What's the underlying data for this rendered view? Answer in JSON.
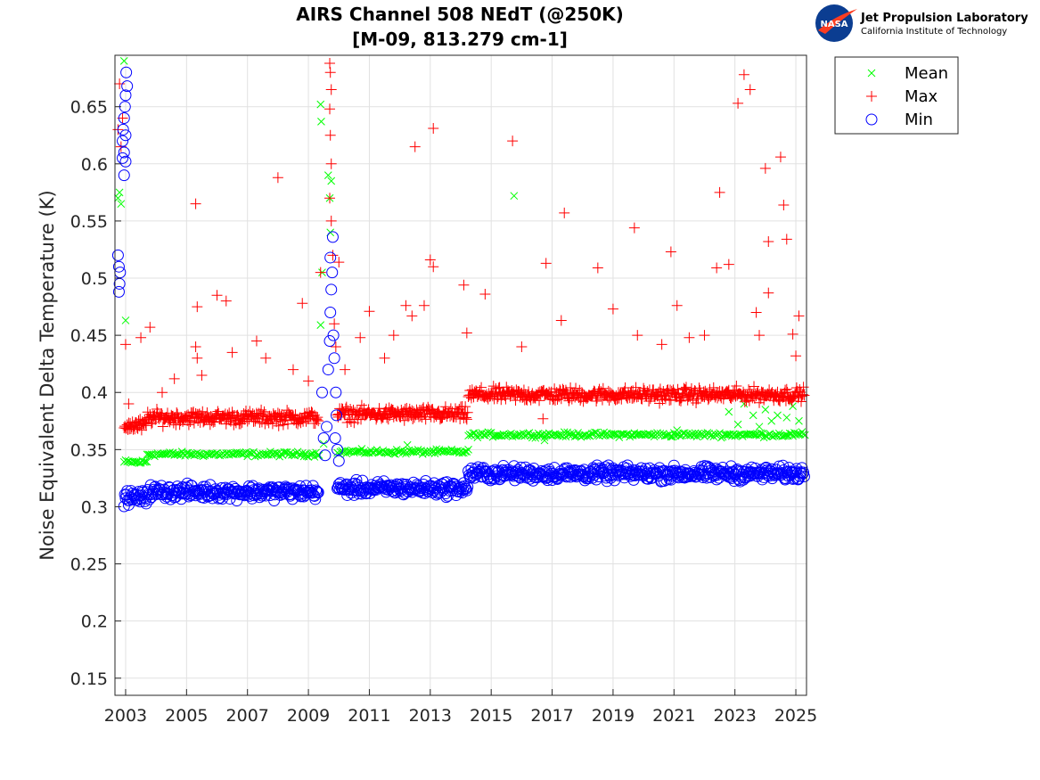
{
  "chart_data": {
    "type": "scatter",
    "title_line1": "AIRS Channel 508 NEdT (@250K)",
    "title_line2": "[M-09, 813.279 cm-1]",
    "xlabel": "",
    "ylabel": "Noise Equivalent Delta Temperature (K)",
    "xlim": [
      2002.65,
      2025.35
    ],
    "ylim": [
      0.135,
      0.695
    ],
    "grid": true,
    "legend_position": "outside-top-right",
    "x_ticks": [
      2003,
      2005,
      2007,
      2009,
      2011,
      2013,
      2015,
      2017,
      2019,
      2021,
      2023,
      2025
    ],
    "x_tick_labels": [
      "2003",
      "2005",
      "2007",
      "2009",
      "2011",
      "2013",
      "2015",
      "2017",
      "2019",
      "2021",
      "2023",
      "2025"
    ],
    "y_ticks": [
      0.15,
      0.2,
      0.25,
      0.3,
      0.35,
      0.4,
      0.45,
      0.5,
      0.55,
      0.6,
      0.65
    ],
    "y_tick_labels": [
      "0.15",
      "0.2",
      "0.25",
      "0.3",
      "0.35",
      "0.4",
      "0.45",
      "0.5",
      "0.55",
      "0.6",
      "0.65"
    ],
    "series": [
      {
        "name": "Mean",
        "marker": "x",
        "color": "#00ff00",
        "segments": [
          {
            "x_start": 2002.95,
            "x_end": 2003.7,
            "level": 0.339
          },
          {
            "x_start": 2003.7,
            "x_end": 2009.35,
            "level": 0.346
          },
          {
            "x_start": 2009.95,
            "x_end": 2014.25,
            "level": 0.348
          },
          {
            "x_start": 2014.25,
            "x_end": 2025.3,
            "level": 0.363
          }
        ],
        "outliers": [
          [
            2002.75,
            0.57
          ],
          [
            2002.8,
            0.575
          ],
          [
            2002.85,
            0.565
          ],
          [
            2002.95,
            0.69
          ],
          [
            2003.0,
            0.463
          ],
          [
            2009.4,
            0.652
          ],
          [
            2009.42,
            0.637
          ],
          [
            2009.45,
            0.505
          ],
          [
            2009.4,
            0.459
          ],
          [
            2009.5,
            0.355
          ],
          [
            2009.65,
            0.59
          ],
          [
            2009.7,
            0.57
          ],
          [
            2009.72,
            0.54
          ],
          [
            2009.75,
            0.585
          ],
          [
            2015.75,
            0.572
          ],
          [
            2012.25,
            0.354
          ],
          [
            2021.1,
            0.367
          ],
          [
            2016.75,
            0.358
          ],
          [
            2022.8,
            0.383
          ],
          [
            2023.1,
            0.372
          ],
          [
            2023.3,
            0.39
          ],
          [
            2023.6,
            0.38
          ],
          [
            2023.8,
            0.37
          ],
          [
            2024.0,
            0.385
          ],
          [
            2024.2,
            0.375
          ],
          [
            2024.4,
            0.38
          ],
          [
            2024.7,
            0.378
          ],
          [
            2024.9,
            0.388
          ],
          [
            2025.1,
            0.375
          ]
        ]
      },
      {
        "name": "Max",
        "marker": "+",
        "color": "#ff0000",
        "segments": [
          {
            "x_start": 2002.95,
            "x_end": 2003.7,
            "level": 0.371
          },
          {
            "x_start": 2003.7,
            "x_end": 2009.35,
            "level": 0.378
          },
          {
            "x_start": 2009.95,
            "x_end": 2014.25,
            "level": 0.381
          },
          {
            "x_start": 2014.25,
            "x_end": 2025.3,
            "level": 0.398
          }
        ],
        "outliers": [
          [
            2002.75,
            0.63
          ],
          [
            2002.8,
            0.67
          ],
          [
            2002.85,
            0.615
          ],
          [
            2002.9,
            0.64
          ],
          [
            2003.0,
            0.442
          ],
          [
            2003.1,
            0.39
          ],
          [
            2003.5,
            0.448
          ],
          [
            2003.8,
            0.457
          ],
          [
            2004.2,
            0.4
          ],
          [
            2004.6,
            0.412
          ],
          [
            2005.3,
            0.565
          ],
          [
            2005.35,
            0.475
          ],
          [
            2005.3,
            0.44
          ],
          [
            2005.35,
            0.43
          ],
          [
            2005.5,
            0.415
          ],
          [
            2006.0,
            0.485
          ],
          [
            2006.3,
            0.48
          ],
          [
            2006.5,
            0.435
          ],
          [
            2007.3,
            0.445
          ],
          [
            2007.6,
            0.43
          ],
          [
            2008.0,
            0.588
          ],
          [
            2008.5,
            0.42
          ],
          [
            2008.8,
            0.478
          ],
          [
            2009.0,
            0.41
          ],
          [
            2009.4,
            0.505
          ],
          [
            2009.7,
            0.688
          ],
          [
            2009.72,
            0.68
          ],
          [
            2009.75,
            0.665
          ],
          [
            2009.7,
            0.648
          ],
          [
            2009.72,
            0.625
          ],
          [
            2009.75,
            0.6
          ],
          [
            2009.7,
            0.57
          ],
          [
            2009.75,
            0.55
          ],
          [
            2009.8,
            0.52
          ],
          [
            2009.85,
            0.46
          ],
          [
            2009.9,
            0.44
          ],
          [
            2010.0,
            0.514
          ],
          [
            2010.2,
            0.42
          ],
          [
            2010.7,
            0.448
          ],
          [
            2011.0,
            0.471
          ],
          [
            2011.5,
            0.43
          ],
          [
            2011.8,
            0.45
          ],
          [
            2012.2,
            0.476
          ],
          [
            2012.4,
            0.467
          ],
          [
            2012.5,
            0.615
          ],
          [
            2012.8,
            0.476
          ],
          [
            2013.0,
            0.516
          ],
          [
            2013.1,
            0.51
          ],
          [
            2013.1,
            0.631
          ],
          [
            2014.1,
            0.494
          ],
          [
            2014.2,
            0.452
          ],
          [
            2014.8,
            0.486
          ],
          [
            2015.7,
            0.62
          ],
          [
            2016.0,
            0.44
          ],
          [
            2016.8,
            0.513
          ],
          [
            2016.7,
            0.377
          ],
          [
            2017.3,
            0.463
          ],
          [
            2017.4,
            0.557
          ],
          [
            2018.5,
            0.509
          ],
          [
            2019.0,
            0.473
          ],
          [
            2019.7,
            0.544
          ],
          [
            2019.8,
            0.45
          ],
          [
            2020.6,
            0.442
          ],
          [
            2020.9,
            0.523
          ],
          [
            2021.1,
            0.476
          ],
          [
            2021.5,
            0.448
          ],
          [
            2022.0,
            0.45
          ],
          [
            2022.4,
            0.509
          ],
          [
            2022.5,
            0.575
          ],
          [
            2022.8,
            0.512
          ],
          [
            2023.1,
            0.653
          ],
          [
            2023.3,
            0.678
          ],
          [
            2023.5,
            0.665
          ],
          [
            2023.7,
            0.47
          ],
          [
            2023.8,
            0.45
          ],
          [
            2024.0,
            0.596
          ],
          [
            2024.1,
            0.532
          ],
          [
            2024.1,
            0.487
          ],
          [
            2024.5,
            0.606
          ],
          [
            2024.6,
            0.564
          ],
          [
            2024.7,
            0.534
          ],
          [
            2024.9,
            0.451
          ],
          [
            2025.1,
            0.467
          ],
          [
            2025.0,
            0.432
          ]
        ]
      },
      {
        "name": "Min",
        "marker": "o",
        "color": "#0000ff",
        "segments": [
          {
            "x_start": 2002.95,
            "x_end": 2003.7,
            "level": 0.308
          },
          {
            "x_start": 2003.7,
            "x_end": 2009.35,
            "level": 0.313
          },
          {
            "x_start": 2009.95,
            "x_end": 2014.25,
            "level": 0.316
          },
          {
            "x_start": 2014.25,
            "x_end": 2025.3,
            "level": 0.329
          }
        ],
        "outliers": [
          [
            2002.75,
            0.52
          ],
          [
            2002.78,
            0.51
          ],
          [
            2002.8,
            0.495
          ],
          [
            2002.78,
            0.488
          ],
          [
            2002.82,
            0.505
          ],
          [
            2002.9,
            0.62
          ],
          [
            2002.92,
            0.63
          ],
          [
            2002.95,
            0.64
          ],
          [
            2002.98,
            0.65
          ],
          [
            2003.0,
            0.66
          ],
          [
            2003.02,
            0.68
          ],
          [
            2002.95,
            0.61
          ],
          [
            2003.0,
            0.602
          ],
          [
            2002.95,
            0.59
          ],
          [
            2003.05,
            0.668
          ],
          [
            2003.0,
            0.625
          ],
          [
            2002.9,
            0.605
          ],
          [
            2009.45,
            0.4
          ],
          [
            2009.5,
            0.36
          ],
          [
            2009.55,
            0.345
          ],
          [
            2009.6,
            0.37
          ],
          [
            2009.65,
            0.42
          ],
          [
            2009.7,
            0.445
          ],
          [
            2009.72,
            0.47
          ],
          [
            2009.75,
            0.49
          ],
          [
            2009.78,
            0.505
          ],
          [
            2009.72,
            0.518
          ],
          [
            2009.8,
            0.536
          ],
          [
            2009.82,
            0.45
          ],
          [
            2009.85,
            0.43
          ],
          [
            2009.9,
            0.4
          ],
          [
            2009.92,
            0.38
          ],
          [
            2009.95,
            0.35
          ],
          [
            2010.0,
            0.34
          ],
          [
            2009.88,
            0.36
          ]
        ]
      }
    ]
  },
  "logo": {
    "badge_text": "NASA",
    "line1": "Jet Propulsion Laboratory",
    "line2": "California Institute of Technology",
    "colors": {
      "badge": "#0b3d91",
      "swoosh": "#fc3d21"
    }
  }
}
